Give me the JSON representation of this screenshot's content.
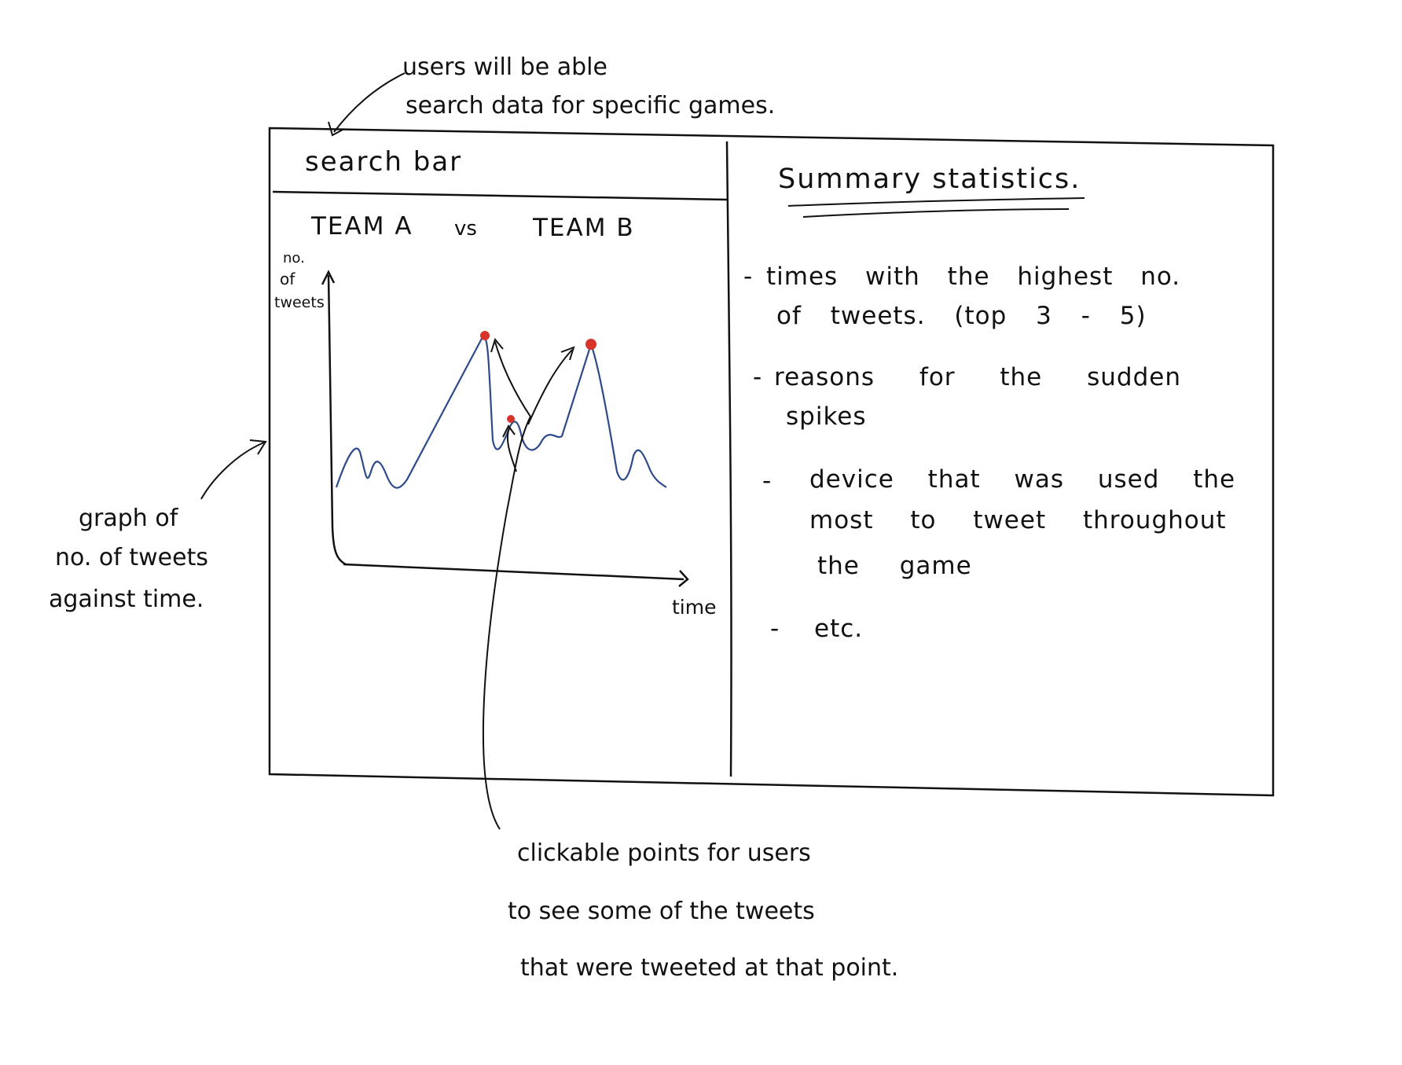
{
  "annotations": {
    "top_line1": "users will be able",
    "top_line2": "search data for specific games.",
    "left_line1": "graph of",
    "left_line2": "no. of tweets",
    "left_line3": "against time.",
    "bottom_line1": "clickable points for users",
    "bottom_line2": "to see some of the tweets",
    "bottom_line3": "that were tweeted at that point."
  },
  "search": {
    "label": "search bar"
  },
  "match": {
    "team_a": "TEAM A",
    "vs": "vs",
    "team_b": "TEAM B"
  },
  "graph": {
    "y_label_1": "no.",
    "y_label_2": "of",
    "y_label_3": "tweets",
    "x_label": "time",
    "line_color": "#2d4a8a",
    "point_color": "#d9342b"
  },
  "summary": {
    "title": "Summary statistics.",
    "items": [
      {
        "bullet": "-",
        "line1": "times with the highest no.",
        "line2": "of tweets. (top 3 - 5)"
      },
      {
        "bullet": "-",
        "line1": "reasons for the sudden",
        "line2": "spikes"
      },
      {
        "bullet": "-",
        "line1": "device that was used the",
        "line2": "most to tweet throughout",
        "line3": "the game"
      },
      {
        "bullet": "-",
        "line1": "etc."
      }
    ]
  }
}
